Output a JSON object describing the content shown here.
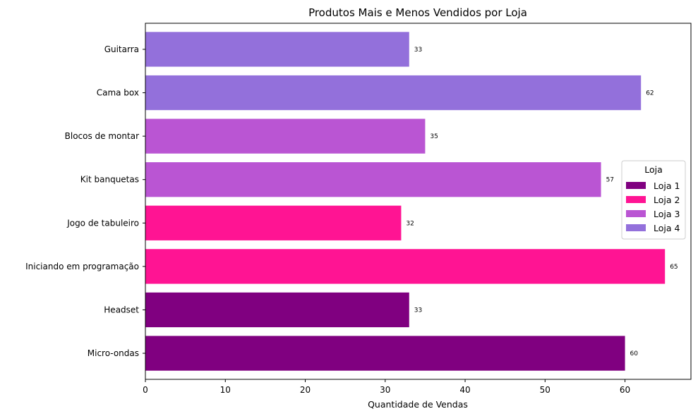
{
  "chart_data": {
    "type": "bar",
    "orientation": "horizontal",
    "title": "Produtos Mais e Menos Vendidos por Loja",
    "xlabel": "Quantidade de Vendas",
    "ylabel": "",
    "xlim": [
      0,
      68.25
    ],
    "xticks": [
      0,
      10,
      20,
      30,
      40,
      50,
      60
    ],
    "grid": false,
    "legend_title": "Loja",
    "legend_position": "center-right",
    "categories": [
      "Micro-ondas",
      "Headset",
      "Iniciando em programação",
      "Jogo de tabuleiro",
      "Kit banquetas",
      "Blocos de montar",
      "Cama box",
      "Guitarra"
    ],
    "values": [
      60,
      33,
      65,
      32,
      57,
      35,
      62,
      33
    ],
    "bar_store": [
      "Loja 1",
      "Loja 1",
      "Loja 2",
      "Loja 2",
      "Loja 3",
      "Loja 3",
      "Loja 4",
      "Loja 4"
    ],
    "series": [
      {
        "name": "Loja 1",
        "color": "#800080"
      },
      {
        "name": "Loja 2",
        "color": "#ff1493"
      },
      {
        "name": "Loja 3",
        "color": "#ba55d3"
      },
      {
        "name": "Loja 4",
        "color": "#9370db"
      }
    ]
  }
}
